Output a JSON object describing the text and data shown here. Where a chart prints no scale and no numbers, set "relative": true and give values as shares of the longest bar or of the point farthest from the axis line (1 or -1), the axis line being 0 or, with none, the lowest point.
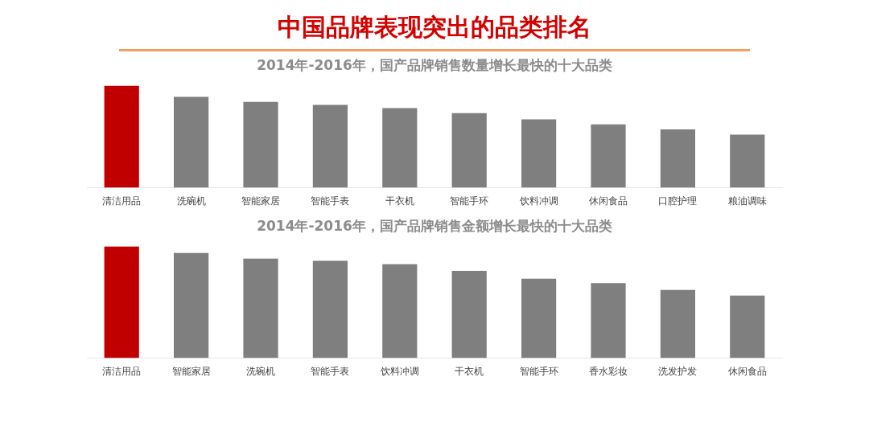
{
  "chart_data": [
    {
      "type": "bar",
      "title": "中国品牌表现突出的品类排名",
      "subtitle": "2014年-2016年，国产品牌销售数量增长最快的十大品类",
      "categories": [
        "清洁用品",
        "洗碗机",
        "智能家居",
        "智能手表",
        "干衣机",
        "智能手环",
        "饮料冲调",
        "休闲食品",
        "口腔护理",
        "粮油调味"
      ],
      "values": [
        1,
        0.89,
        0.84,
        0.81,
        0.78,
        0.73,
        0.67,
        0.62,
        0.57,
        0.52
      ],
      "colors": [
        "#c00000",
        "#7f7f7f",
        "#7f7f7f",
        "#7f7f7f",
        "#7f7f7f",
        "#7f7f7f",
        "#7f7f7f",
        "#7f7f7f",
        "#7f7f7f",
        "#7f7f7f"
      ],
      "relative": true,
      "grid": false,
      "legend": false
    },
    {
      "type": "bar",
      "subtitle": "2014年-2016年，国产品牌销售金额增长最快的十大品类",
      "categories": [
        "清洁用品",
        "智能家居",
        "洗碗机",
        "智能手表",
        "饮料冲调",
        "干衣机",
        "智能手环",
        "香水彩妆",
        "洗发护发",
        "休闲食品"
      ],
      "values": [
        1,
        0.94,
        0.89,
        0.87,
        0.84,
        0.78,
        0.71,
        0.67,
        0.61,
        0.56
      ],
      "colors": [
        "#c00000",
        "#7f7f7f",
        "#7f7f7f",
        "#7f7f7f",
        "#7f7f7f",
        "#7f7f7f",
        "#7f7f7f",
        "#7f7f7f",
        "#7f7f7f",
        "#7f7f7f"
      ],
      "relative": true,
      "grid": false,
      "legend": false
    }
  ]
}
